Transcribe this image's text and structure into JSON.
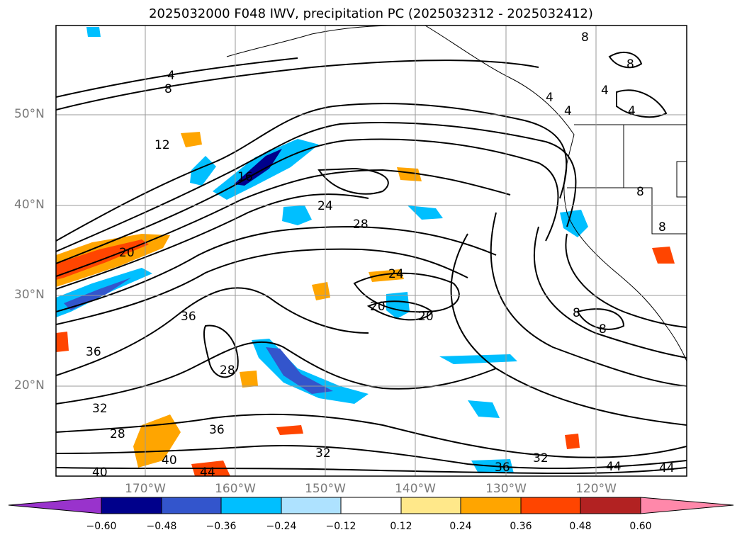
{
  "title": "2025032000 F048 IWV, precipitation PC (2025032312 - 2025032412)",
  "lat_labels": [
    "50°N",
    "40°N",
    "30°N",
    "20°N"
  ],
  "lon_labels": [
    "170°W",
    "160°W",
    "150°W",
    "140°W",
    "130°W",
    "120°W"
  ],
  "contour_labels": [
    "4",
    "8",
    "12",
    "16",
    "20",
    "24",
    "28",
    "32",
    "36",
    "40",
    "44"
  ],
  "colorbar": {
    "ticks": [
      "−0.60",
      "−0.48",
      "−0.36",
      "−0.24",
      "−0.12",
      "0.12",
      "0.24",
      "0.36",
      "0.48",
      "0.60"
    ],
    "colors": [
      "#9933cc",
      "#00008b",
      "#3355cc",
      "#00bfff",
      "#aee2ff",
      "#ffffff",
      "#ffe88a",
      "#ffa500",
      "#ff4500",
      "#b22222",
      "#ff88aa"
    ]
  },
  "colors": {
    "contour": "#000000",
    "grid": "#999999",
    "axis_label": "#7a7a7a"
  }
}
